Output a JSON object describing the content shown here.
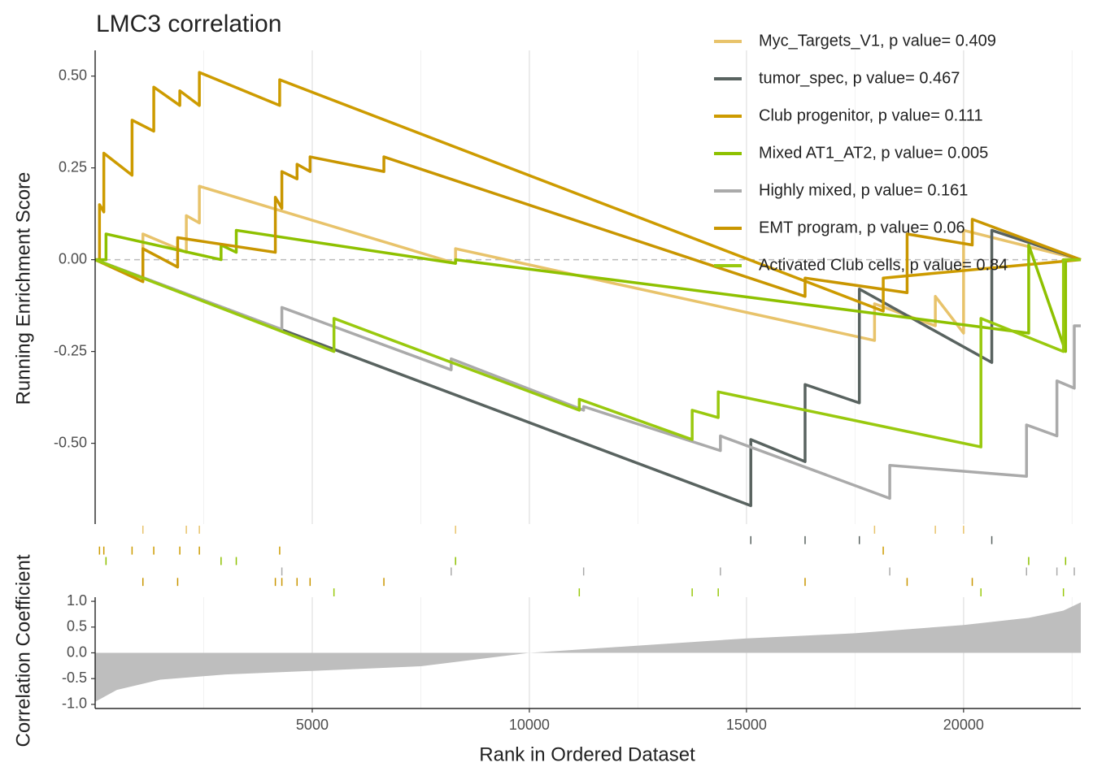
{
  "chart_data": [
    {
      "type": "line",
      "title": "LMC3 correlation",
      "ylabel": "Running Enrichment Score",
      "xlim": [
        0,
        22700
      ],
      "ylim": [
        -0.72,
        0.57
      ],
      "xticks": [
        5000,
        10000,
        15000,
        20000
      ],
      "xminorticks": [
        2500,
        7500,
        12500,
        17500,
        22500
      ],
      "yticks": [
        {
          "value": 0.5,
          "label": "0.50"
        },
        {
          "value": 0.25,
          "label": "0.25"
        },
        {
          "value": 0,
          "label": "0.00"
        },
        {
          "value": -0.25,
          "label": "-0.25"
        },
        {
          "value": -0.5,
          "label": "-0.50"
        }
      ],
      "hline": 0,
      "grid": true,
      "legend": "top-right",
      "series": [
        {
          "name": "Myc_Targets_V1, p value= 0.409",
          "color": "#E8C36B",
          "x": [
            0,
            1100,
            1100,
            2100,
            2100,
            2400,
            2400,
            8300,
            8300,
            17950,
            17950,
            19350,
            19350,
            20000,
            20000,
            22700
          ],
          "values": [
            0,
            -0.05,
            0.07,
            0.02,
            0.12,
            0.1,
            0.2,
            -0.01,
            0.03,
            -0.22,
            -0.12,
            -0.18,
            -0.1,
            -0.2,
            0.08,
            0
          ]
        },
        {
          "name": "tumor_spec, p value= 0.467",
          "color": "#596360",
          "x": [
            0,
            15100,
            15100,
            16350,
            16350,
            17600,
            17600,
            20650,
            20650,
            22700
          ],
          "values": [
            0,
            -0.67,
            -0.49,
            -0.55,
            -0.34,
            -0.39,
            -0.08,
            -0.28,
            0.08,
            0
          ]
        },
        {
          "name": "Club progenitor, p value= 0.111",
          "color": "#CD9B00",
          "x": [
            0,
            100,
            100,
            200,
            200,
            850,
            850,
            1350,
            1350,
            1950,
            1950,
            2400,
            2400,
            4250,
            4250,
            18150,
            18150,
            22700
          ],
          "values": [
            0,
            0,
            0.15,
            0.13,
            0.29,
            0.23,
            0.38,
            0.35,
            0.47,
            0.42,
            0.46,
            0.42,
            0.51,
            0.42,
            0.49,
            -0.14,
            -0.05,
            0
          ]
        },
        {
          "name": "Mixed AT1_AT2, p value= 0.005",
          "color": "#8EC100",
          "x": [
            0,
            250,
            250,
            2900,
            2900,
            3250,
            3250,
            8300,
            8300,
            21500,
            21500,
            22350,
            22350,
            22700
          ],
          "values": [
            0,
            0,
            0.07,
            0,
            0.04,
            0.02,
            0.08,
            -0.01,
            0,
            -0.2,
            0.04,
            -0.25,
            0,
            0
          ]
        },
        {
          "name": "Highly mixed, p value= 0.161",
          "color": "#AAAAAA",
          "x": [
            0,
            4300,
            4300,
            8200,
            8200,
            11250,
            11250,
            14400,
            14400,
            18300,
            18300,
            21450,
            21450,
            22150,
            22150,
            22550,
            22550,
            22700
          ],
          "values": [
            0,
            -0.19,
            -0.13,
            -0.3,
            -0.27,
            -0.41,
            -0.4,
            -0.52,
            -0.48,
            -0.65,
            -0.56,
            -0.59,
            -0.45,
            -0.48,
            -0.33,
            -0.35,
            -0.18,
            -0.18
          ]
        },
        {
          "name": "EMT program, p value= 0.06",
          "color": "#C99600",
          "x": [
            0,
            1100,
            1100,
            1900,
            1900,
            4150,
            4150,
            4300,
            4300,
            4650,
            4650,
            4950,
            4950,
            6650,
            6650,
            16350,
            16350,
            18700,
            18700,
            20200,
            20200,
            22700
          ],
          "values": [
            0,
            -0.06,
            0.03,
            -0.02,
            0.06,
            0.02,
            0.17,
            0.14,
            0.24,
            0.22,
            0.26,
            0.24,
            0.28,
            0.24,
            0.28,
            -0.1,
            -0.05,
            -0.09,
            0.07,
            0.04,
            0.11,
            0
          ]
        },
        {
          "name": "Activated Club cells, p value= 0.84",
          "color": "#99C90E",
          "x": [
            0,
            5500,
            5500,
            11150,
            11150,
            13750,
            13750,
            14350,
            14350,
            20400,
            20400,
            22300,
            22300,
            22700
          ],
          "values": [
            0,
            -0.25,
            -0.16,
            -0.41,
            -0.38,
            -0.49,
            -0.41,
            -0.43,
            -0.36,
            -0.51,
            -0.16,
            -0.25,
            0,
            0
          ]
        }
      ]
    },
    {
      "type": "area",
      "xlabel": "Rank in Ordered Dataset",
      "ylabel": "Correlation Coefficient",
      "color": "#BEBEBE",
      "xlim": [
        0,
        22700
      ],
      "ylim": [
        -1.08,
        1.08
      ],
      "xticks": [
        5000,
        10000,
        15000,
        20000
      ],
      "xminorticks": [
        2500,
        7500,
        12500,
        17500,
        22500
      ],
      "yticks": [
        {
          "value": 1,
          "label": "1.0"
        },
        0.5,
        {
          "value": 0,
          "label": "0.0"
        },
        -0.5,
        {
          "value": -1,
          "label": "-1.0"
        }
      ],
      "grid": true,
      "x": [
        0,
        500,
        1500,
        3000,
        5000,
        7500,
        10000,
        12500,
        15000,
        17500,
        20000,
        21500,
        22300,
        22700
      ],
      "values": [
        -0.95,
        -0.72,
        -0.52,
        -0.42,
        -0.35,
        -0.26,
        0,
        0.14,
        0.28,
        0.38,
        0.54,
        0.68,
        0.82,
        0.98
      ]
    }
  ]
}
